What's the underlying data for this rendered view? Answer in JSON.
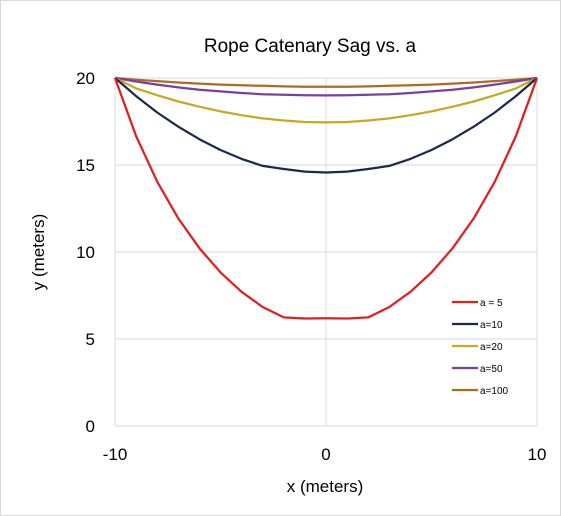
{
  "chart_data": {
    "type": "line",
    "title": "Rope Catenary Sag vs. a",
    "xlabel": "x (meters)",
    "ylabel": "y (meters)",
    "xlim": [
      -10,
      10
    ],
    "ylim": [
      0,
      20
    ],
    "x_ticks": [
      "-10",
      "0",
      "10"
    ],
    "y_ticks": [
      "0",
      "5",
      "10",
      "15",
      "20"
    ],
    "grid": true,
    "legend_position": "right",
    "x": [
      -10,
      -9,
      -8,
      -7,
      -6,
      -5,
      -4,
      -3,
      -2,
      -1,
      0,
      1,
      2,
      3,
      4,
      5,
      6,
      7,
      8,
      9,
      10
    ],
    "series": [
      {
        "name": "a = 5",
        "color": "#e0201e",
        "values": [
          20,
          16.66,
          14.04,
          11.93,
          10.22,
          8.83,
          7.71,
          6.84,
          6.24,
          6.18,
          6.19,
          6.18,
          6.24,
          6.84,
          7.71,
          8.83,
          10.22,
          11.93,
          14.04,
          16.66,
          20
        ]
      },
      {
        "name": "a=10",
        "color": "#1a2a4e",
        "values": [
          20,
          18.96,
          18.02,
          17.2,
          16.48,
          15.86,
          15.35,
          14.95,
          14.77,
          14.62,
          14.57,
          14.62,
          14.77,
          14.95,
          15.35,
          15.86,
          16.48,
          17.2,
          18.02,
          18.96,
          20
        ]
      },
      {
        "name": "a=20",
        "color": "#c8a820",
        "values": [
          20,
          19.4,
          19.01,
          18.65,
          18.35,
          18.08,
          17.86,
          17.68,
          17.56,
          17.47,
          17.45,
          17.47,
          17.56,
          17.68,
          17.86,
          18.08,
          18.35,
          18.65,
          19.01,
          19.4,
          20
        ]
      },
      {
        "name": "a=50",
        "color": "#7b3f9e",
        "values": [
          20,
          19.8,
          19.62,
          19.46,
          19.33,
          19.23,
          19.14,
          19.07,
          19.04,
          19.01,
          19.0,
          19.01,
          19.04,
          19.07,
          19.14,
          19.23,
          19.33,
          19.46,
          19.62,
          19.8,
          20
        ]
      },
      {
        "name": "a=100",
        "color": "#b06a20",
        "values": [
          20,
          19.9,
          19.82,
          19.74,
          19.68,
          19.62,
          19.58,
          19.55,
          19.52,
          19.5,
          19.5,
          19.5,
          19.52,
          19.55,
          19.58,
          19.62,
          19.68,
          19.74,
          19.82,
          19.9,
          20
        ]
      }
    ]
  }
}
